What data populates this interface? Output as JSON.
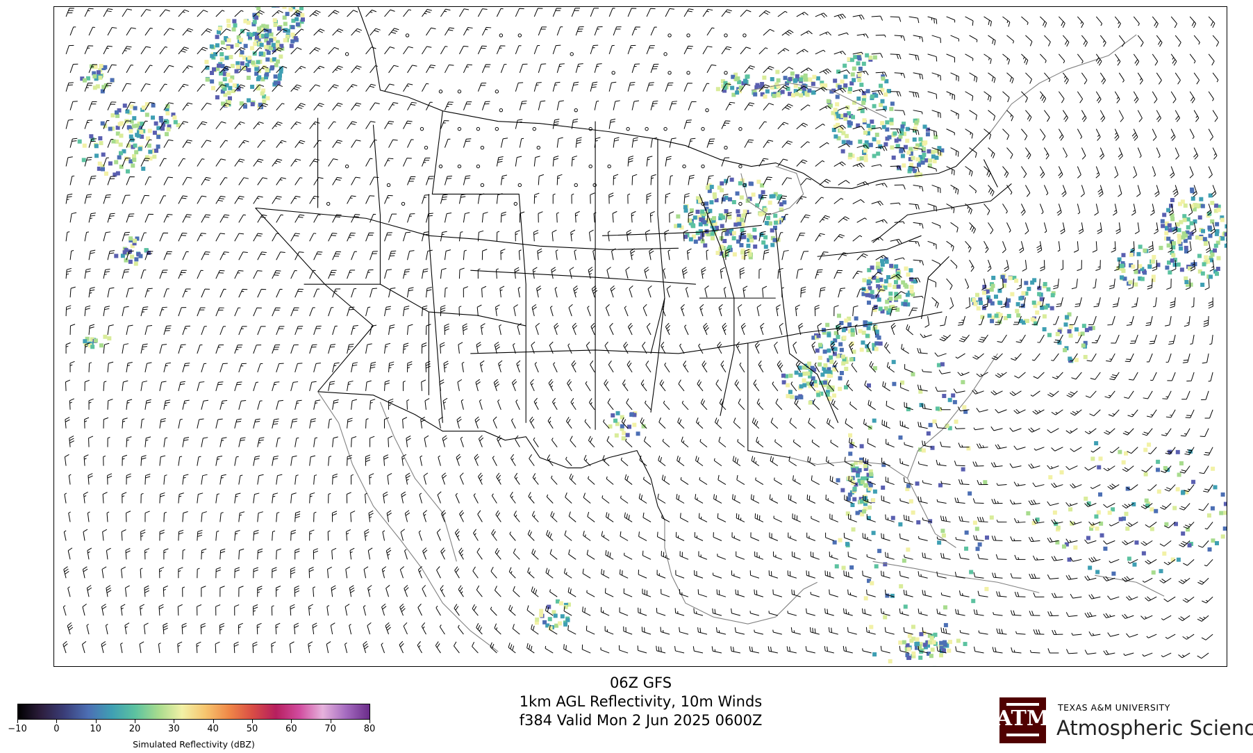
{
  "title": {
    "line1": "06Z GFS",
    "line2": "1km AGL Reflectivity, 10m Winds",
    "line3": "f384 Valid Mon 2 Jun 2025 0600Z"
  },
  "colorbar": {
    "label": "Simulated Reflectivity (dBZ)",
    "ticks": [
      "−10",
      "0",
      "10",
      "20",
      "30",
      "40",
      "50",
      "60",
      "70",
      "80"
    ],
    "range": [
      -10,
      80
    ],
    "stops": [
      "#000000",
      "#2d1e3e",
      "#3b3f7a",
      "#4c6fb4",
      "#3f9fb3",
      "#5cc2a0",
      "#a8dc8e",
      "#f2f1a6",
      "#f7c56e",
      "#f08848",
      "#d94d45",
      "#b61f5e",
      "#d14b9e",
      "#e6b2dd",
      "#a56bc0",
      "#6a2c8a"
    ]
  },
  "logo": {
    "top": "TEXAS A&M UNIVERSITY",
    "main": "Atmospheric Sciences",
    "mark_color": "#500000"
  },
  "map": {
    "region": "Continental United States, Gulf of Mexico and Caribbean",
    "features": [
      "state borders",
      "country borders",
      "coastlines",
      "wind barbs",
      "reflectivity echoes"
    ],
    "colors": {
      "borders": "#000000",
      "coast_gray": "#808080"
    }
  }
}
